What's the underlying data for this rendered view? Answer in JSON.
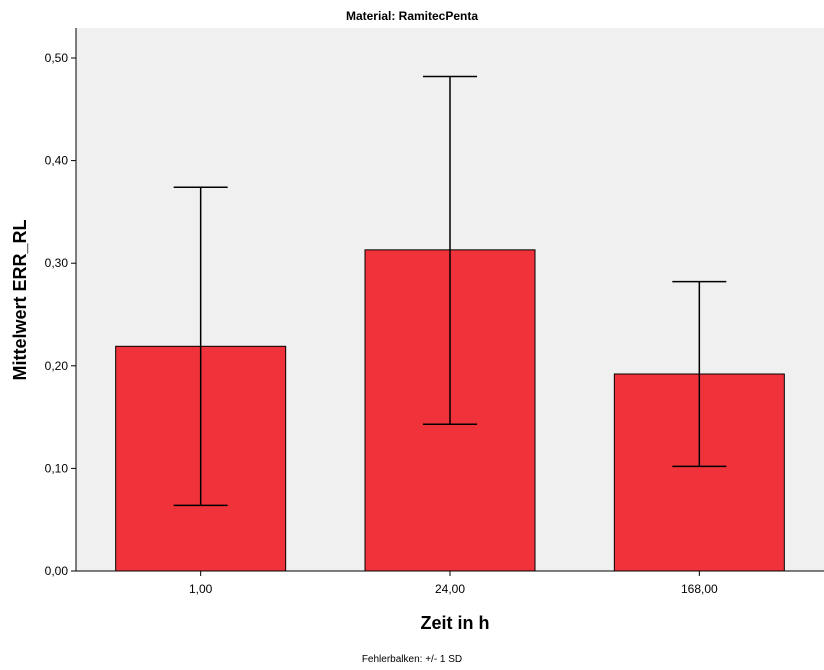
{
  "chart_data": {
    "type": "bar",
    "title": "Material: RamitecPenta",
    "xlabel": "Zeit in h",
    "ylabel": "Mittelwert ERR_RL",
    "footnote": "Fehlerbalken: +/- 1 SD",
    "categories": [
      "1,00",
      "24,00",
      "168,00"
    ],
    "values": [
      0.219,
      0.313,
      0.192
    ],
    "error_low": [
      0.064,
      0.143,
      0.102
    ],
    "error_high": [
      0.374,
      0.482,
      0.282
    ],
    "ylim": [
      0,
      0.5
    ],
    "yticks": [
      {
        "value": 0.0,
        "label": "0,00"
      },
      {
        "value": 0.1,
        "label": "0,10"
      },
      {
        "value": 0.2,
        "label": "0,20"
      },
      {
        "value": 0.3,
        "label": "0,30"
      },
      {
        "value": 0.4,
        "label": "0,40"
      },
      {
        "value": 0.5,
        "label": "0,50"
      }
    ],
    "grid": false,
    "legend": "none",
    "colors": {
      "bar_fill": "#f0323a",
      "bar_stroke": "#000000",
      "plot_background": "#f0f0f0",
      "error_bar": "#000000"
    }
  }
}
